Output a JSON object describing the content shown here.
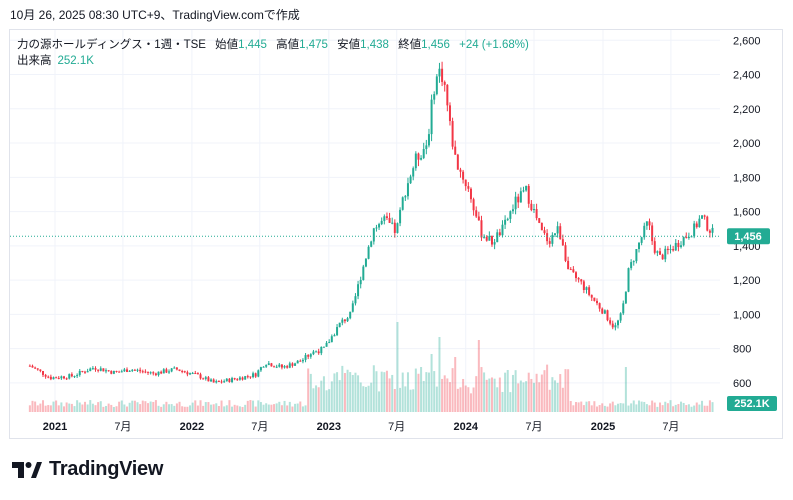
{
  "header": {
    "timestamp": "10月 26, 2025 08:30 UTC+9、TradingView.comで作成"
  },
  "legend": {
    "symbol": "力の源ホールディングス・1週・TSE",
    "open_label": "始値",
    "open": "1,445",
    "high_label": "高値",
    "high": "1,475",
    "low_label": "安値",
    "low": "1,438",
    "close_label": "終値",
    "close": "1,456",
    "change": "+24 (+1.68%)",
    "volume_label": "出来高",
    "volume": "252.1K"
  },
  "footer": {
    "brand": "TradingView",
    "logo_icon": "tradingview-logo-icon"
  },
  "colors": {
    "up": "#22ab94",
    "down": "#f23645",
    "text": "#131722",
    "border": "#e0e3eb"
  },
  "chart_data": {
    "type": "candlestick",
    "timeframe": "1週",
    "y_axis": {
      "ticks": [
        600,
        800,
        1000,
        1200,
        1400,
        1600,
        1800,
        2000,
        2200,
        2400,
        2600
      ],
      "range": [
        430,
        2660
      ]
    },
    "x_axis": {
      "labels": [
        "2021",
        "7月",
        "2022",
        "7月",
        "2023",
        "7月",
        "2024",
        "7月",
        "2025",
        "7月"
      ]
    },
    "last_price": {
      "value": 1456,
      "label": "1,456"
    },
    "last_volume_label": "252.1K",
    "price_path": [
      [
        "2020-10-26",
        700
      ],
      [
        "2020-12-20",
        630
      ],
      [
        "2021-02-15",
        640
      ],
      [
        "2021-04-15",
        690
      ],
      [
        "2021-06-10",
        660
      ],
      [
        "2021-07-20",
        680
      ],
      [
        "2021-09-20",
        655
      ],
      [
        "2021-11-20",
        680
      ],
      [
        "2022-01-20",
        640
      ],
      [
        "2022-03-01",
        600
      ],
      [
        "2022-05-01",
        625
      ],
      [
        "2022-06-20",
        650
      ],
      [
        "2022-07-15",
        720
      ],
      [
        "2022-08-30",
        690
      ],
      [
        "2022-10-20",
        730
      ],
      [
        "2022-11-20",
        780
      ],
      [
        "2022-12-20",
        800
      ],
      [
        "2023-02-01",
        950
      ],
      [
        "2023-03-01",
        1000
      ],
      [
        "2023-03-30",
        1250
      ],
      [
        "2023-04-30",
        1500
      ],
      [
        "2023-05-30",
        1550
      ],
      [
        "2023-06-30",
        1480
      ],
      [
        "2023-07-20",
        1700
      ],
      [
        "2023-08-20",
        1900
      ],
      [
        "2023-09-20",
        2000
      ],
      [
        "2023-10-10",
        2350
      ],
      [
        "2023-10-25",
        2430
      ],
      [
        "2023-11-05",
        2350
      ],
      [
        "2023-11-20",
        2100
      ],
      [
        "2023-12-05",
        1900
      ],
      [
        "2024-01-10",
        1720
      ],
      [
        "2024-02-10",
        1480
      ],
      [
        "2024-03-10",
        1420
      ],
      [
        "2024-04-10",
        1500
      ],
      [
        "2024-05-10",
        1650
      ],
      [
        "2024-06-10",
        1720
      ],
      [
        "2024-07-01",
        1600
      ],
      [
        "2024-07-20",
        1480
      ],
      [
        "2024-08-10",
        1430
      ],
      [
        "2024-09-01",
        1500
      ],
      [
        "2024-09-15",
        1430
      ],
      [
        "2024-10-01",
        1250
      ],
      [
        "2024-11-01",
        1190
      ],
      [
        "2024-12-01",
        1100
      ],
      [
        "2025-01-01",
        1020
      ],
      [
        "2025-02-01",
        920
      ],
      [
        "2025-02-20",
        1000
      ],
      [
        "2025-03-10",
        1250
      ],
      [
        "2025-04-10",
        1430
      ],
      [
        "2025-05-01",
        1540
      ],
      [
        "2025-05-15",
        1400
      ],
      [
        "2025-06-01",
        1330
      ],
      [
        "2025-07-01",
        1380
      ],
      [
        "2025-08-01",
        1440
      ],
      [
        "2025-09-01",
        1500
      ],
      [
        "2025-09-20",
        1570
      ],
      [
        "2025-10-05",
        1520
      ],
      [
        "2025-10-26",
        1456
      ]
    ],
    "volume_spikes": [
      [
        "2023-07-03",
        0.9
      ],
      [
        "2023-09-04",
        0.45
      ],
      [
        "2023-10-02",
        0.58
      ],
      [
        "2023-10-23",
        0.75
      ],
      [
        "2023-12-04",
        0.55
      ],
      [
        "2024-02-05",
        0.72
      ],
      [
        "2025-03-03",
        0.45
      ]
    ]
  }
}
